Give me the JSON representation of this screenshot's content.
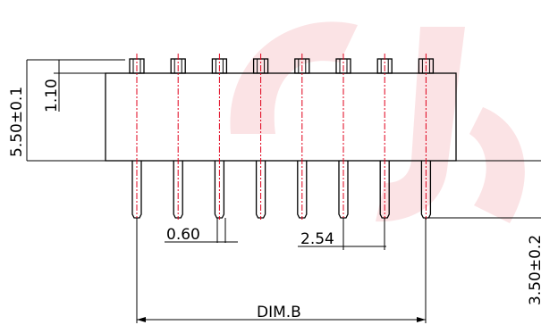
{
  "drawing": {
    "pin_count": 8,
    "dimensions": {
      "total_height": "5.50±0.1",
      "upper_pin_height": "1.10",
      "pin_width": "0.60",
      "pitch": "2.54",
      "lower_pin_length": "3.50±0.2",
      "span": "DIM.B"
    },
    "colors": {
      "outline": "#000000",
      "center_line": "#e0001b",
      "watermark": "#f6c2c6"
    }
  }
}
